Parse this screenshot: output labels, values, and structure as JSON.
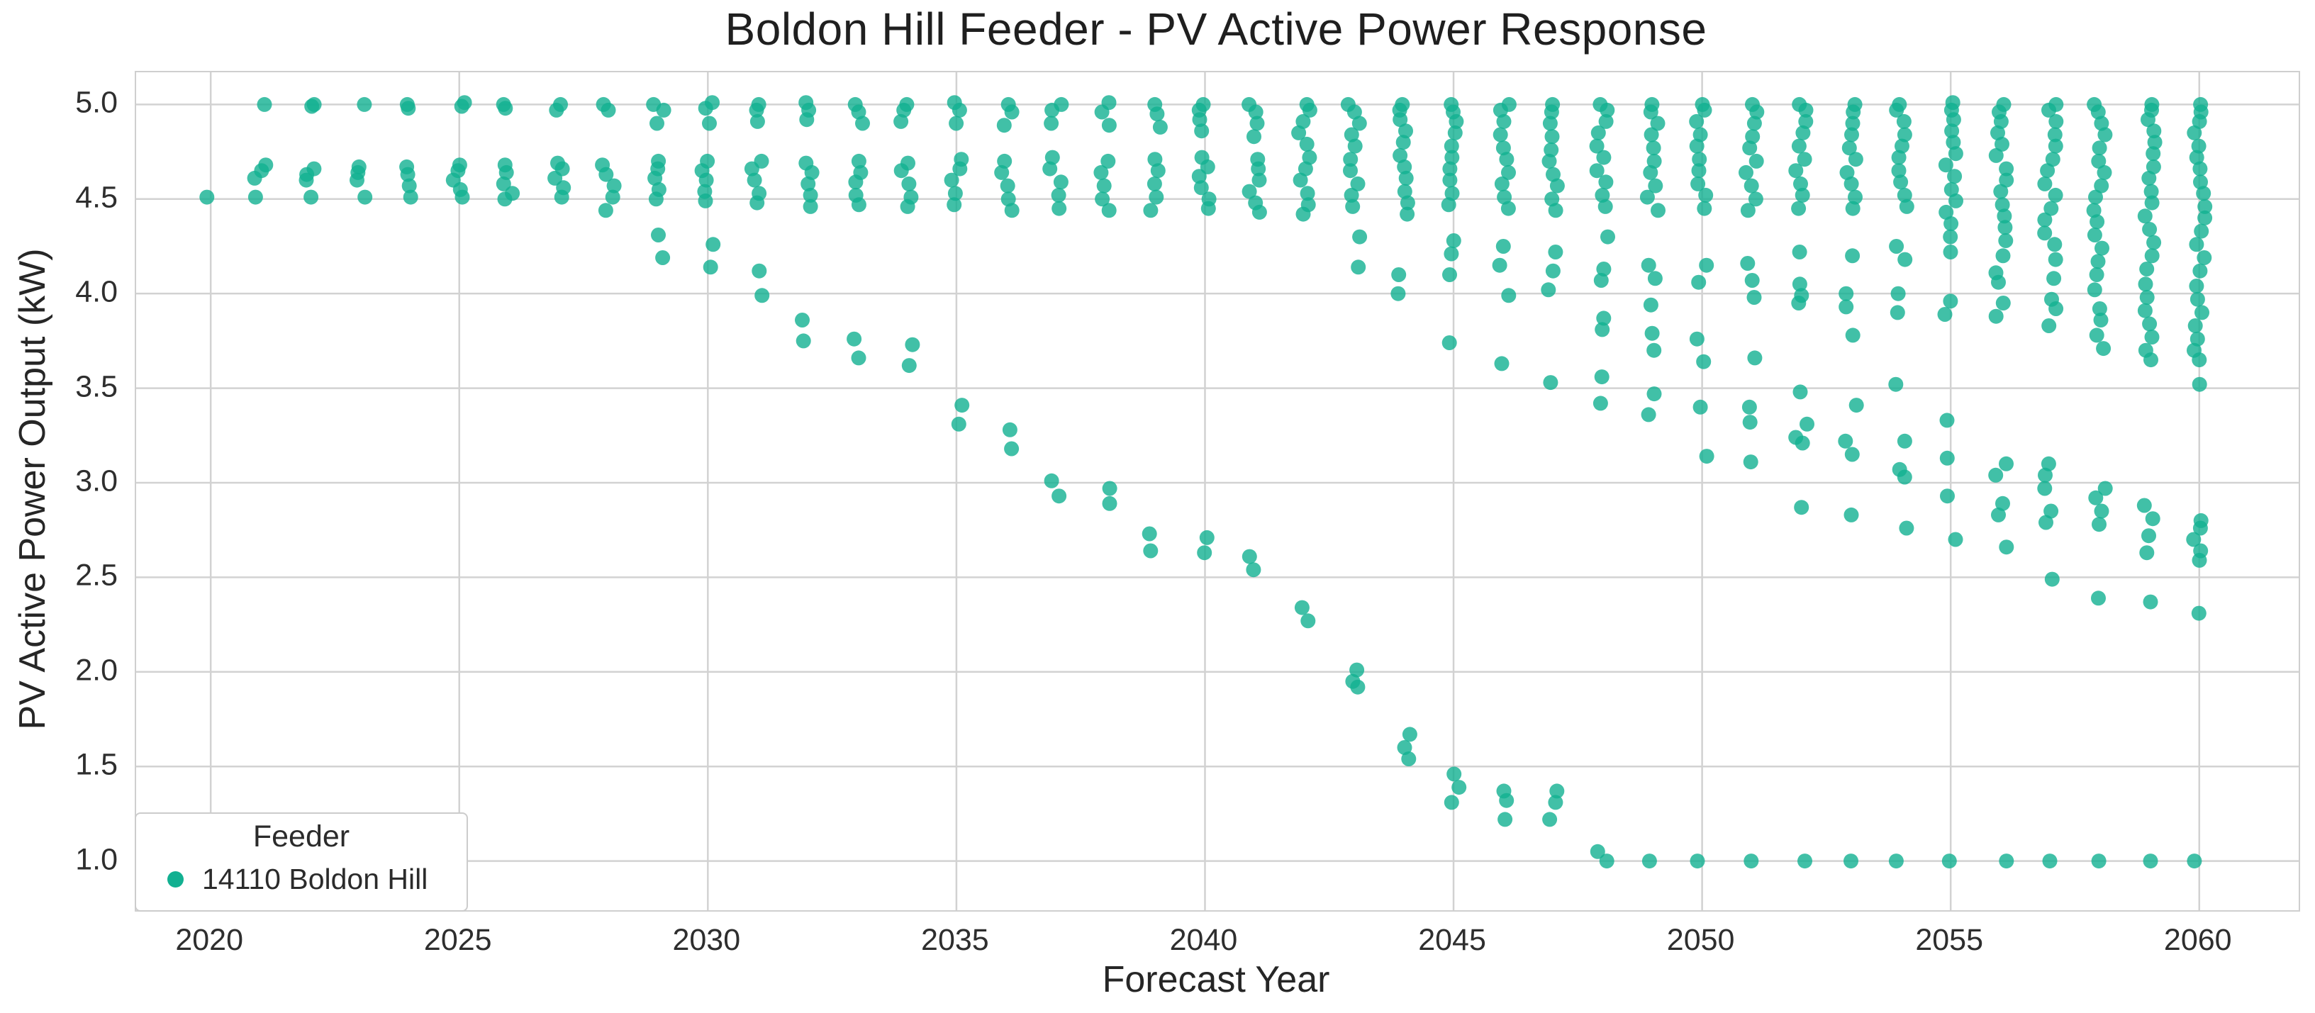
{
  "figure": {
    "title": "Boldon Hill Feeder - PV Active Power Response",
    "background_color": "#ffffff",
    "grid_color": "#d2d2d2",
    "spine_color": "#cfcfcf",
    "text_color": "#262626"
  },
  "axes": {
    "x_label": "Forecast Year",
    "y_label": "PV Active Power Output (kW)"
  },
  "legend": {
    "title": "Feeder",
    "items": [
      {
        "label": "14110 Boldon Hill",
        "color": "#12b091"
      }
    ]
  },
  "chart_data": {
    "type": "scatter",
    "title": "Boldon Hill Feeder - PV Active Power Response",
    "xlabel": "Forecast Year",
    "ylabel": "PV Active Power Output (kW)",
    "series_name": "14110 Boldon Hill",
    "marker_color": "#12b091",
    "marker_opacity": 0.8,
    "marker_radius_px": 10.5,
    "grid": true,
    "legend_position": "lower left",
    "xlim": [
      2018.5,
      2062.0
    ],
    "ylim": [
      0.74,
      5.17
    ],
    "x_ticks": [
      2020,
      2025,
      2030,
      2035,
      2040,
      2045,
      2050,
      2055,
      2060
    ],
    "y_ticks": [
      1.0,
      1.5,
      2.0,
      2.5,
      3.0,
      3.5,
      4.0,
      4.5,
      5.0
    ],
    "y_tick_labels": [
      "1.0",
      "1.5",
      "2.0",
      "2.5",
      "3.0",
      "3.5",
      "4.0",
      "4.5",
      "5.0"
    ],
    "x_tick_labels": [
      "2020",
      "2025",
      "2030",
      "2035",
      "2040",
      "2045",
      "2050",
      "2055",
      "2060"
    ],
    "points_by_year": [
      {
        "year": 2020,
        "values": [
          4.51
        ]
      },
      {
        "year": 2021,
        "values": [
          5.0,
          4.68,
          4.65,
          4.61,
          4.51
        ]
      },
      {
        "year": 2022,
        "values": [
          5.0,
          4.99,
          4.66,
          4.63,
          4.6,
          4.51
        ]
      },
      {
        "year": 2023,
        "values": [
          5.0,
          4.67,
          4.64,
          4.6,
          4.51
        ]
      },
      {
        "year": 2024,
        "values": [
          5.0,
          4.98,
          4.67,
          4.63,
          4.57,
          4.51
        ]
      },
      {
        "year": 2025,
        "values": [
          5.01,
          4.99,
          4.68,
          4.65,
          4.6,
          4.55,
          4.51
        ]
      },
      {
        "year": 2026,
        "values": [
          5.0,
          4.98,
          4.68,
          4.64,
          4.58,
          4.53,
          4.5
        ]
      },
      {
        "year": 2027,
        "values": [
          5.0,
          4.97,
          4.69,
          4.66,
          4.61,
          4.56,
          4.51
        ]
      },
      {
        "year": 2028,
        "values": [
          5.0,
          4.97,
          4.68,
          4.63,
          4.57,
          4.51,
          4.44
        ]
      },
      {
        "year": 2029,
        "values": [
          5.0,
          4.97,
          4.9,
          4.7,
          4.66,
          4.61,
          4.55,
          4.5,
          4.31,
          4.19
        ]
      },
      {
        "year": 2030,
        "values": [
          5.01,
          4.98,
          4.9,
          4.7,
          4.65,
          4.6,
          4.54,
          4.49,
          4.26,
          4.14
        ]
      },
      {
        "year": 2031,
        "values": [
          5.0,
          4.97,
          4.91,
          4.7,
          4.66,
          4.6,
          4.53,
          4.48,
          4.12,
          3.99
        ]
      },
      {
        "year": 2032,
        "values": [
          5.01,
          4.97,
          4.92,
          4.69,
          4.64,
          4.58,
          4.52,
          4.46,
          3.86,
          3.75
        ]
      },
      {
        "year": 2033,
        "values": [
          5.0,
          4.96,
          4.9,
          4.7,
          4.64,
          4.59,
          4.52,
          4.47,
          3.76,
          3.66
        ]
      },
      {
        "year": 2034,
        "values": [
          5.0,
          4.97,
          4.91,
          4.69,
          4.65,
          4.58,
          4.51,
          4.46,
          3.73,
          3.62
        ]
      },
      {
        "year": 2035,
        "values": [
          5.01,
          4.97,
          4.9,
          4.71,
          4.66,
          4.6,
          4.53,
          4.47,
          3.41,
          3.31
        ]
      },
      {
        "year": 2036,
        "values": [
          5.0,
          4.96,
          4.89,
          4.7,
          4.64,
          4.57,
          4.5,
          4.44,
          3.28,
          3.18
        ]
      },
      {
        "year": 2037,
        "values": [
          5.0,
          4.97,
          4.9,
          4.72,
          4.66,
          4.59,
          4.52,
          4.45,
          3.01,
          2.93
        ]
      },
      {
        "year": 2038,
        "values": [
          5.01,
          4.96,
          4.89,
          4.7,
          4.64,
          4.57,
          4.5,
          4.44,
          2.97,
          2.89
        ]
      },
      {
        "year": 2039,
        "values": [
          5.0,
          4.95,
          4.88,
          4.71,
          4.65,
          4.58,
          4.51,
          4.44,
          2.73,
          2.64
        ]
      },
      {
        "year": 2040,
        "values": [
          5.0,
          4.97,
          4.92,
          4.86,
          4.72,
          4.67,
          4.62,
          4.56,
          4.5,
          4.45,
          2.71,
          2.63
        ]
      },
      {
        "year": 2041,
        "values": [
          5.0,
          4.96,
          4.9,
          4.83,
          4.71,
          4.66,
          4.6,
          4.54,
          4.48,
          4.43,
          2.61,
          2.54
        ]
      },
      {
        "year": 2042,
        "values": [
          5.0,
          4.97,
          4.91,
          4.85,
          4.79,
          4.72,
          4.66,
          4.6,
          4.53,
          4.47,
          4.42,
          2.34,
          2.27
        ]
      },
      {
        "year": 2043,
        "values": [
          5.0,
          4.96,
          4.9,
          4.84,
          4.78,
          4.71,
          4.65,
          4.58,
          4.52,
          4.46,
          4.3,
          4.14,
          2.01,
          1.95,
          1.92
        ]
      },
      {
        "year": 2044,
        "values": [
          5.0,
          4.97,
          4.92,
          4.86,
          4.8,
          4.73,
          4.67,
          4.61,
          4.54,
          4.48,
          4.42,
          4.1,
          4.0,
          1.67,
          1.6,
          1.54
        ]
      },
      {
        "year": 2045,
        "values": [
          5.0,
          4.96,
          4.91,
          4.85,
          4.78,
          4.72,
          4.66,
          4.6,
          4.53,
          4.47,
          4.28,
          4.21,
          4.1,
          3.74,
          1.46,
          1.39,
          1.31
        ]
      },
      {
        "year": 2046,
        "values": [
          5.0,
          4.97,
          4.91,
          4.84,
          4.77,
          4.71,
          4.64,
          4.58,
          4.51,
          4.45,
          4.25,
          4.15,
          3.99,
          3.63,
          1.37,
          1.32,
          1.22
        ]
      },
      {
        "year": 2047,
        "values": [
          5.0,
          4.96,
          4.9,
          4.83,
          4.76,
          4.7,
          4.63,
          4.57,
          4.5,
          4.44,
          4.22,
          4.12,
          4.02,
          3.53,
          1.37,
          1.31,
          1.22
        ]
      },
      {
        "year": 2048,
        "values": [
          5.0,
          4.97,
          4.91,
          4.85,
          4.78,
          4.72,
          4.65,
          4.59,
          4.52,
          4.46,
          4.3,
          4.13,
          4.07,
          3.87,
          3.81,
          3.56,
          3.42,
          1.05,
          1.0
        ]
      },
      {
        "year": 2049,
        "values": [
          5.0,
          4.96,
          4.9,
          4.84,
          4.77,
          4.7,
          4.64,
          4.57,
          4.51,
          4.44,
          4.15,
          4.08,
          3.94,
          3.79,
          3.7,
          3.47,
          3.36,
          1.0
        ]
      },
      {
        "year": 2050,
        "values": [
          5.0,
          4.97,
          4.91,
          4.84,
          4.78,
          4.71,
          4.65,
          4.58,
          4.52,
          4.45,
          4.15,
          4.06,
          3.76,
          3.64,
          3.4,
          3.14,
          1.0
        ]
      },
      {
        "year": 2051,
        "values": [
          5.0,
          4.96,
          4.9,
          4.83,
          4.77,
          4.7,
          4.64,
          4.57,
          4.5,
          4.44,
          4.16,
          4.07,
          3.98,
          3.66,
          3.4,
          3.32,
          3.11,
          1.0
        ]
      },
      {
        "year": 2052,
        "values": [
          5.0,
          4.97,
          4.91,
          4.85,
          4.78,
          4.71,
          4.65,
          4.58,
          4.52,
          4.45,
          4.22,
          4.05,
          3.99,
          3.95,
          3.48,
          3.31,
          3.24,
          3.21,
          2.87,
          1.0
        ]
      },
      {
        "year": 2053,
        "values": [
          5.0,
          4.96,
          4.9,
          4.84,
          4.77,
          4.71,
          4.64,
          4.58,
          4.51,
          4.45,
          4.2,
          4.0,
          3.93,
          3.78,
          3.41,
          3.22,
          3.15,
          2.83,
          1.0
        ]
      },
      {
        "year": 2054,
        "values": [
          5.0,
          4.97,
          4.91,
          4.84,
          4.78,
          4.72,
          4.65,
          4.59,
          4.52,
          4.46,
          4.25,
          4.18,
          4.0,
          3.9,
          3.52,
          3.22,
          3.07,
          3.03,
          2.76,
          1.0
        ]
      },
      {
        "year": 2055,
        "values": [
          5.01,
          4.97,
          4.92,
          4.86,
          4.8,
          4.74,
          4.68,
          4.62,
          4.55,
          4.49,
          4.43,
          4.37,
          4.3,
          4.22,
          3.96,
          3.89,
          3.33,
          3.13,
          2.93,
          2.7,
          1.0
        ]
      },
      {
        "year": 2056,
        "values": [
          5.0,
          4.96,
          4.91,
          4.85,
          4.79,
          4.73,
          4.66,
          4.6,
          4.54,
          4.47,
          4.41,
          4.35,
          4.28,
          4.2,
          4.11,
          4.06,
          3.95,
          3.88,
          3.1,
          3.04,
          2.89,
          2.83,
          2.66,
          1.0
        ]
      },
      {
        "year": 2057,
        "values": [
          5.0,
          4.97,
          4.91,
          4.84,
          4.78,
          4.71,
          4.65,
          4.58,
          4.52,
          4.45,
          4.39,
          4.32,
          4.26,
          4.18,
          4.08,
          3.97,
          3.92,
          3.83,
          3.1,
          3.04,
          2.97,
          2.85,
          2.79,
          2.49,
          1.0
        ]
      },
      {
        "year": 2058,
        "values": [
          5.0,
          4.96,
          4.9,
          4.84,
          4.77,
          4.7,
          4.64,
          4.57,
          4.51,
          4.44,
          4.38,
          4.31,
          4.24,
          4.17,
          4.1,
          4.02,
          3.92,
          3.86,
          3.78,
          3.71,
          2.97,
          2.92,
          2.85,
          2.78,
          2.39,
          1.0
        ]
      },
      {
        "year": 2059,
        "values": [
          5.0,
          4.97,
          4.92,
          4.86,
          4.8,
          4.74,
          4.67,
          4.61,
          4.54,
          4.48,
          4.41,
          4.34,
          4.27,
          4.2,
          4.13,
          4.05,
          3.98,
          3.91,
          3.84,
          3.77,
          3.7,
          3.65,
          2.88,
          2.81,
          2.72,
          2.63,
          2.37,
          1.0
        ]
      },
      {
        "year": 2060,
        "values": [
          5.0,
          4.96,
          4.91,
          4.85,
          4.78,
          4.72,
          4.66,
          4.59,
          4.53,
          4.46,
          4.4,
          4.33,
          4.26,
          4.19,
          4.12,
          4.04,
          3.97,
          3.9,
          3.83,
          3.76,
          3.7,
          3.65,
          3.52,
          2.8,
          2.76,
          2.7,
          2.64,
          2.59,
          2.31,
          1.0
        ]
      }
    ]
  }
}
